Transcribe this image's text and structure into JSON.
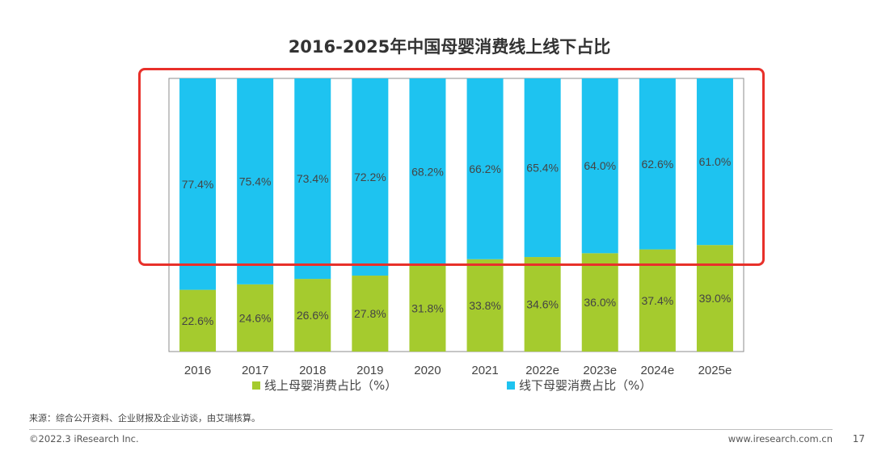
{
  "title": "2016-2025年中国母婴消费线上线下占比",
  "chart_data": {
    "type": "bar",
    "stacked": true,
    "percent_stacked": true,
    "title": "2016-2025年中国母婴消费线上线下占比",
    "categories": [
      "2016",
      "2017",
      "2018",
      "2019",
      "2020",
      "2021",
      "2022e",
      "2023e",
      "2024e",
      "2025e"
    ],
    "series": [
      {
        "name": "线上母婴消费占比（%）",
        "values": [
          22.6,
          24.6,
          26.6,
          27.8,
          31.8,
          33.8,
          34.6,
          36.0,
          37.4,
          39.0
        ],
        "labels": [
          "22.6%",
          "24.6%",
          "26.6%",
          "27.8%",
          "31.8%",
          "33.8%",
          "34.6%",
          "36.0%",
          "37.4%",
          "39.0%"
        ],
        "color": "#a5cb2e"
      },
      {
        "name": "线下母婴消费占比（%）",
        "values": [
          77.4,
          75.4,
          73.4,
          72.2,
          68.2,
          66.2,
          65.4,
          64.0,
          62.6,
          61.0
        ],
        "labels": [
          "77.4%",
          "75.4%",
          "73.4%",
          "72.2%",
          "68.2%",
          "66.2%",
          "65.4%",
          "64.0%",
          "62.6%",
          "61.0%"
        ],
        "color": "#1ec3f0"
      }
    ],
    "ylim": [
      0,
      100
    ],
    "xlabel": "",
    "ylabel": "",
    "legend": "bottom"
  },
  "legend": {
    "online": "线上母婴消费占比（%）",
    "offline": "线下母婴消费占比（%）"
  },
  "source": "来源：综合公开资料、企业财报及企业访谈，由艾瑞核算。",
  "footer": {
    "copyright": "©2022.3 iResearch Inc.",
    "website": "www.iresearch.com.cn",
    "page": "17"
  },
  "highlight_color": "#e8302a"
}
